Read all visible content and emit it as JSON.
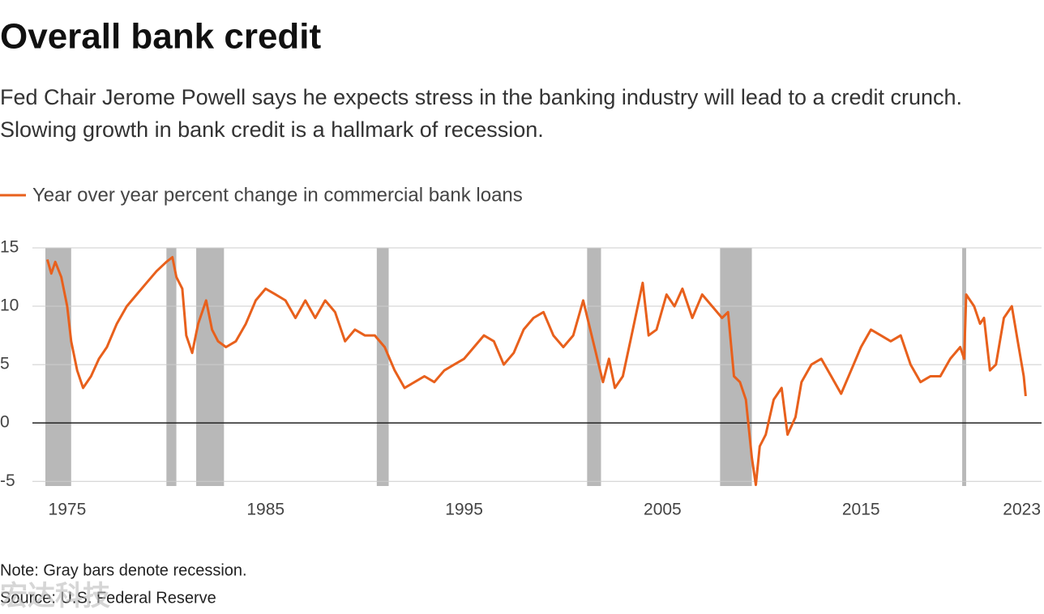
{
  "chart_data": {
    "type": "line",
    "title": "Overall bank credit",
    "subtitle": "Fed Chair Jerome Powell says he expects stress in the banking industry will lead to a credit crunch. Slowing growth in bank credit is a hallmark of recession.",
    "note": "Note: Gray bars denote recession.",
    "source": "Source: U.S. Federal Reserve",
    "watermark": "宏达科技",
    "recessions": [
      [
        1973.9,
        1975.2
      ],
      [
        1980.0,
        1980.5
      ],
      [
        1981.5,
        1982.9
      ],
      [
        1990.6,
        1991.2
      ],
      [
        2001.2,
        2001.9
      ],
      [
        2007.9,
        2009.5
      ],
      [
        2020.1,
        2020.3
      ]
    ],
    "recession_color": "#b8b8b8",
    "xlim": [
      1973.86,
      2024.1
    ],
    "xticks": [
      1975,
      1985,
      1995,
      2005,
      2015,
      2023
    ],
    "ylim": [
      -5.4,
      15
    ],
    "yticks": [
      15,
      10,
      5,
      0,
      -5
    ],
    "grid": true,
    "x": [
      1974.0,
      1974.2,
      1974.4,
      1974.7,
      1975.0,
      1975.2,
      1975.5,
      1975.8,
      1976.2,
      1976.6,
      1977.0,
      1977.5,
      1978.0,
      1978.5,
      1979.0,
      1979.5,
      1980.0,
      1980.3,
      1980.5,
      1980.8,
      1981.0,
      1981.3,
      1981.6,
      1982.0,
      1982.3,
      1982.6,
      1983.0,
      1983.5,
      1984.0,
      1984.5,
      1985.0,
      1985.5,
      1986.0,
      1986.5,
      1987.0,
      1987.5,
      1988.0,
      1988.5,
      1989.0,
      1989.5,
      1990.0,
      1990.5,
      1991.0,
      1991.5,
      1992.0,
      1992.5,
      1993.0,
      1993.5,
      1994.0,
      1994.5,
      1995.0,
      1995.5,
      1996.0,
      1996.5,
      1997.0,
      1997.5,
      1998.0,
      1998.5,
      1999.0,
      1999.5,
      2000.0,
      2000.5,
      2001.0,
      2001.5,
      2002.0,
      2002.3,
      2002.6,
      2003.0,
      2003.5,
      2004.0,
      2004.3,
      2004.7,
      2005.2,
      2005.6,
      2006.0,
      2006.5,
      2007.0,
      2007.5,
      2008.0,
      2008.3,
      2008.6,
      2008.9,
      2009.2,
      2009.5,
      2009.7,
      2009.9,
      2010.2,
      2010.6,
      2011.0,
      2011.3,
      2011.7,
      2012.0,
      2012.5,
      2013.0,
      2013.5,
      2014.0,
      2014.5,
      2015.0,
      2015.5,
      2016.0,
      2016.5,
      2017.0,
      2017.5,
      2018.0,
      2018.5,
      2019.0,
      2019.5,
      2020.0,
      2020.2,
      2020.3,
      2020.7,
      2021.0,
      2021.2,
      2021.5,
      2021.8,
      2022.2,
      2022.6,
      2022.9,
      2023.2,
      2023.3
    ],
    "series": [
      {
        "name": "Year over year percent change in commercial bank loans",
        "color": "#e8601c",
        "values": [
          14.0,
          12.8,
          13.8,
          12.5,
          10.0,
          7.0,
          4.5,
          3.0,
          4.0,
          5.5,
          6.5,
          8.5,
          10.0,
          11.0,
          12.0,
          13.0,
          13.8,
          14.2,
          12.5,
          11.5,
          7.5,
          6.0,
          8.5,
          10.5,
          8.0,
          7.0,
          6.5,
          7.0,
          8.5,
          10.5,
          11.5,
          11.0,
          10.5,
          9.0,
          10.5,
          9.0,
          10.5,
          9.5,
          7.0,
          8.0,
          7.5,
          7.5,
          6.5,
          4.5,
          3.0,
          3.5,
          4.0,
          3.5,
          4.5,
          5.0,
          5.5,
          6.5,
          7.5,
          7.0,
          5.0,
          6.0,
          8.0,
          9.0,
          9.5,
          7.5,
          6.5,
          7.5,
          10.5,
          7.0,
          3.5,
          5.5,
          3.0,
          4.0,
          8.0,
          12.0,
          7.5,
          8.0,
          11.0,
          10.0,
          11.5,
          9.0,
          11.0,
          10.0,
          9.0,
          9.5,
          4.0,
          3.5,
          2.0,
          -3.0,
          -5.3,
          -2.0,
          -1.0,
          2.0,
          3.0,
          -1.0,
          0.5,
          3.5,
          5.0,
          5.5,
          4.0,
          2.5,
          4.5,
          6.5,
          8.0,
          7.5,
          7.0,
          7.5,
          5.0,
          3.5,
          4.0,
          4.0,
          5.5,
          6.5,
          5.5,
          11.0,
          10.0,
          8.5,
          9.0,
          4.5,
          5.0,
          9.0,
          10.0,
          7.0,
          4.0,
          2.3
        ]
      }
    ]
  }
}
